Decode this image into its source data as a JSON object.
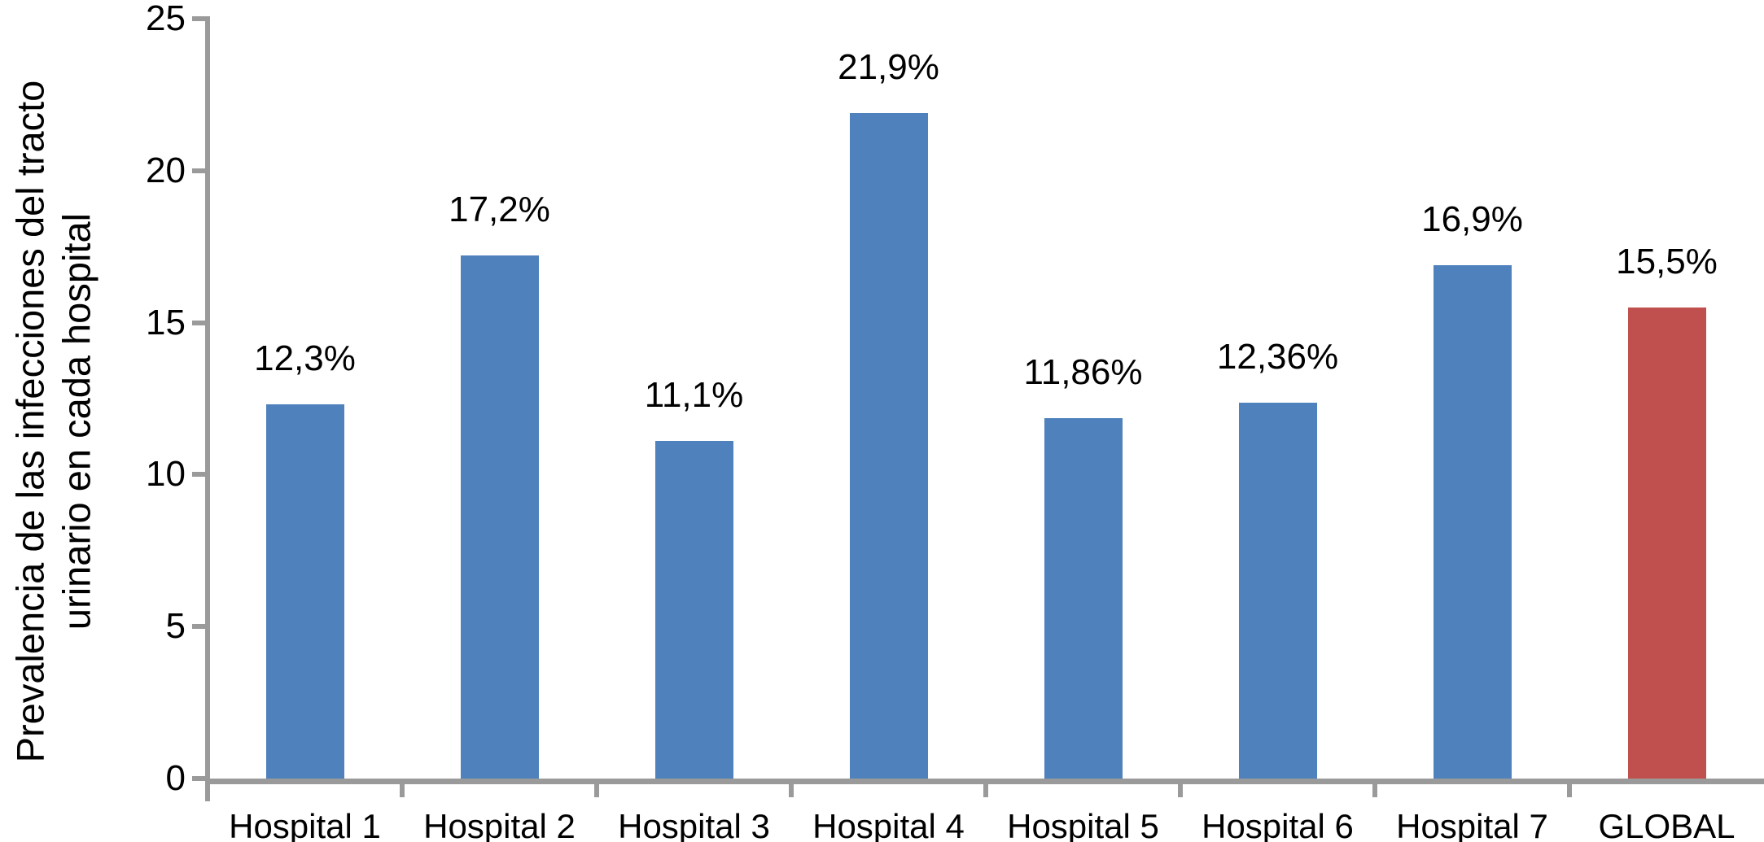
{
  "chart_data": {
    "type": "bar",
    "title": "",
    "xlabel": "",
    "ylabel": "Prevalencia de las infecciones del tracto urinario en cada hospital",
    "ylabel_lines": [
      "Prevalencia de las infecciones del tracto",
      "urinario en cada hospital"
    ],
    "categories": [
      "Hospital 1",
      "Hospital 2",
      "Hospital 3",
      "Hospital 4",
      "Hospital 5",
      "Hospital 6",
      "Hospital 7",
      "GLOBAL"
    ],
    "values": [
      12.3,
      17.2,
      11.1,
      21.9,
      11.86,
      12.36,
      16.9,
      15.5
    ],
    "value_labels": [
      "12,3%",
      "17,2%",
      "11,1%",
      "21,9%",
      "11,86%",
      "12,36%",
      "16,9%",
      "15,5%"
    ],
    "bar_colors": [
      "#4F81BD",
      "#4F81BD",
      "#4F81BD",
      "#4F81BD",
      "#4F81BD",
      "#4F81BD",
      "#4F81BD",
      "#C0504D"
    ],
    "ylim": [
      0,
      25
    ],
    "yticks": [
      0,
      5,
      10,
      15,
      20,
      25
    ],
    "grid": false,
    "legend": "none",
    "colors": {
      "bar_default": "#4F81BD",
      "bar_highlight": "#C0504D",
      "axis": "#9A9A9A",
      "text": "#000000",
      "background": "#FFFFFF"
    }
  }
}
